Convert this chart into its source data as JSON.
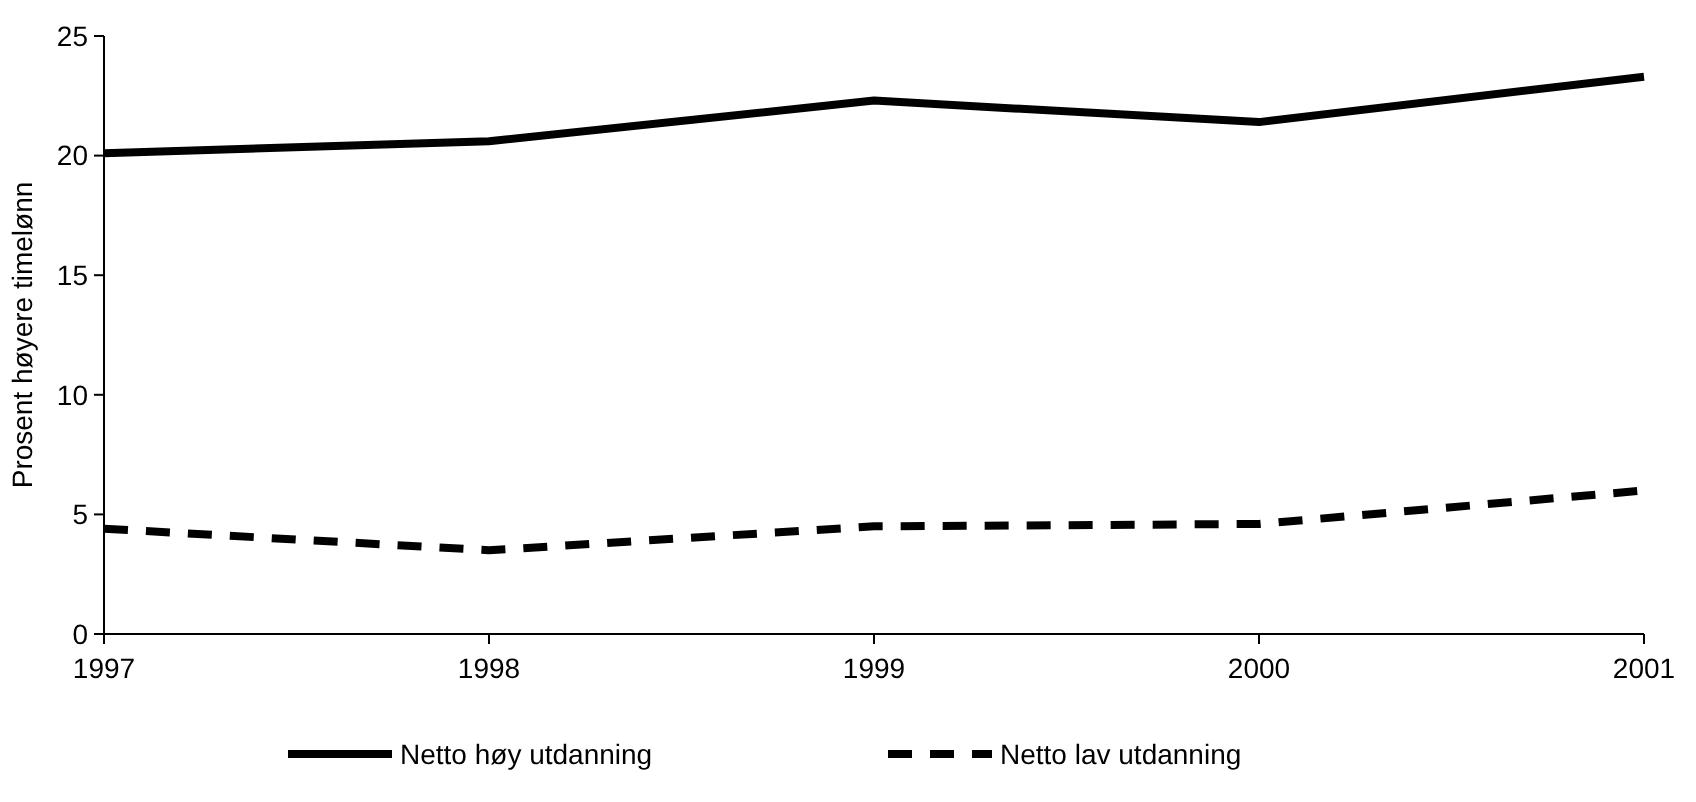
{
  "chart_data": {
    "type": "line",
    "ylabel": "Prosent høyere timelønn",
    "x": [
      1997,
      1998,
      1999,
      2000,
      2001
    ],
    "xlim": [
      1997,
      2001
    ],
    "xticks": [
      1997,
      1998,
      1999,
      2000,
      2001
    ],
    "ylim": [
      0,
      25
    ],
    "yticks": [
      0,
      5,
      10,
      15,
      20,
      25
    ],
    "grid": false,
    "legend": "bottom",
    "marker": "none",
    "series": [
      {
        "name": "Netto høy utdanning",
        "color": "#000000",
        "line_style": "solid",
        "values": [
          20.1,
          20.6,
          22.3,
          21.4,
          23.3
        ]
      },
      {
        "name": "Netto lav utdanning",
        "color": "#000000",
        "line_style": "dashed",
        "values": [
          4.4,
          3.5,
          4.5,
          4.6,
          6.0
        ]
      }
    ]
  }
}
